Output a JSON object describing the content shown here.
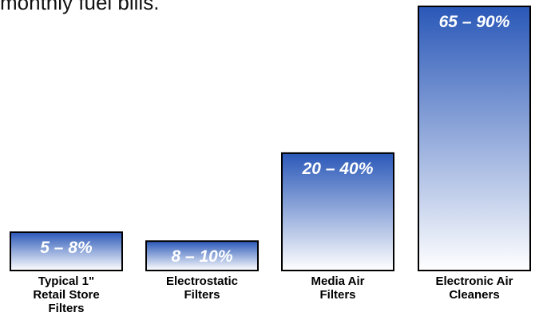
{
  "intro_text": "monthly fuel bills.",
  "colors": {
    "bar_top": "#2a58b8",
    "bar_bottom": "#ffffff",
    "bar_border": "#000000",
    "value_text": "#ffffff"
  },
  "chart_data": {
    "type": "bar",
    "title": "",
    "xlabel": "",
    "ylabel": "",
    "ylim": [
      0,
      90
    ],
    "categories": [
      [
        "Typical 1\"",
        "Retail Store",
        "Filters"
      ],
      [
        "Electrostatic",
        "Filters"
      ],
      [
        "Media Air",
        "Filters"
      ],
      [
        "Electronic Air",
        "Cleaners"
      ]
    ],
    "values": [
      8,
      10,
      40,
      90
    ],
    "value_labels": [
      "5 – 8%",
      "8 – 10%",
      "20 – 40%",
      "65 – 90%"
    ]
  }
}
